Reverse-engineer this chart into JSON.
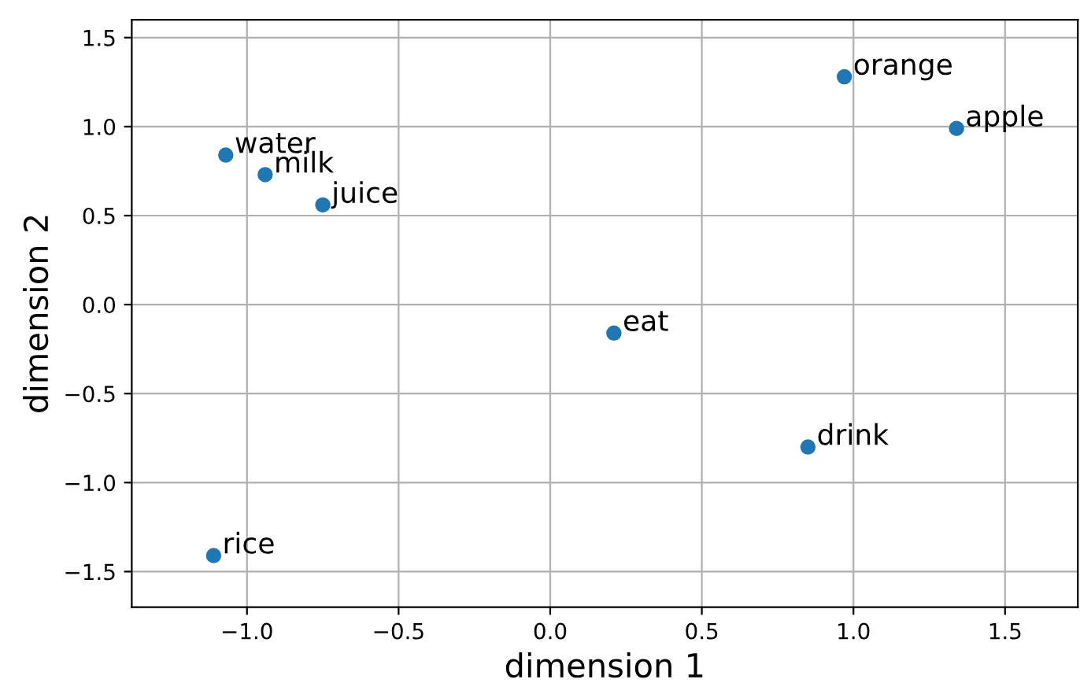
{
  "chart_data": {
    "type": "scatter",
    "xlabel": "dimension 1",
    "ylabel": "dimension 2",
    "x": [
      -1.07,
      -0.94,
      -0.75,
      0.21,
      0.97,
      1.34,
      0.85,
      -1.11
    ],
    "series": [
      {
        "color": "#1f77b4",
        "values": [
          0.84,
          0.73,
          0.56,
          -0.16,
          1.28,
          0.99,
          -0.8,
          -1.41
        ]
      }
    ],
    "annotations": [
      {
        "text": "water",
        "x": -1.07,
        "y": 0.84
      },
      {
        "text": "milk",
        "x": -0.94,
        "y": 0.73
      },
      {
        "text": "juice",
        "x": -0.75,
        "y": 0.56
      },
      {
        "text": "eat",
        "x": 0.21,
        "y": -0.16
      },
      {
        "text": "orange",
        "x": 0.97,
        "y": 1.28
      },
      {
        "text": "apple",
        "x": 1.34,
        "y": 0.99
      },
      {
        "text": "drink",
        "x": 0.85,
        "y": -0.8
      },
      {
        "text": "rice",
        "x": -1.11,
        "y": -1.41
      }
    ],
    "xlim": [
      -1.38,
      1.74
    ],
    "ylim": [
      -1.7,
      1.6
    ],
    "xticks": [
      {
        "value": -1.0,
        "label": "−1.0"
      },
      {
        "value": -0.5,
        "label": "−0.5"
      },
      {
        "value": 0.0,
        "label": "0.0"
      },
      {
        "value": 0.5,
        "label": "0.5"
      },
      {
        "value": 1.0,
        "label": "1.0"
      },
      {
        "value": 1.5,
        "label": "1.5"
      }
    ],
    "yticks": [
      {
        "value": -1.5,
        "label": "−1.5"
      },
      {
        "value": -1.0,
        "label": "−1.0"
      },
      {
        "value": -0.5,
        "label": "−0.5"
      },
      {
        "value": 0.0,
        "label": "0.0"
      },
      {
        "value": 0.5,
        "label": "0.5"
      },
      {
        "value": 1.0,
        "label": "1.0"
      },
      {
        "value": 1.5,
        "label": "1.5"
      }
    ],
    "grid": true,
    "marker": "circle"
  }
}
